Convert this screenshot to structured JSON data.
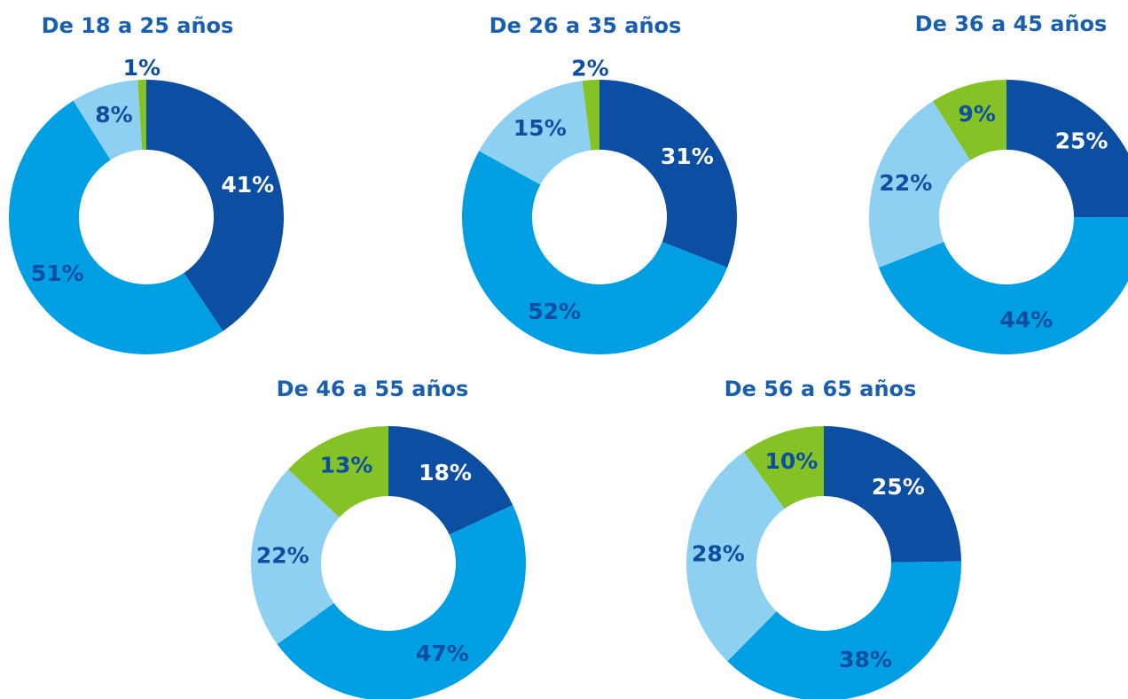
{
  "chart_data": [
    {
      "type": "donut",
      "title": "De 18 a 25 años",
      "values": [
        41,
        51,
        8,
        1
      ],
      "value_labels": [
        "41%",
        "51%",
        "8%",
        "1%"
      ],
      "colors": [
        "#0b4ea2",
        "#009fe3",
        "#8dd0f2",
        "#84c225"
      ]
    },
    {
      "type": "donut",
      "title": "De 26 a 35 años",
      "values": [
        31,
        52,
        15,
        2
      ],
      "value_labels": [
        "31%",
        "52%",
        "15%",
        "2%"
      ],
      "colors": [
        "#0b4ea2",
        "#009fe3",
        "#8dd0f2",
        "#84c225"
      ]
    },
    {
      "type": "donut",
      "title": "De 36 a 45 años",
      "values": [
        25,
        44,
        22,
        9
      ],
      "value_labels": [
        "25%",
        "44%",
        "22%",
        "9%"
      ],
      "colors": [
        "#0b4ea2",
        "#009fe3",
        "#8dd0f2",
        "#84c225"
      ]
    },
    {
      "type": "donut",
      "title": "De 46 a 55 años",
      "values": [
        18,
        47,
        22,
        13
      ],
      "value_labels": [
        "18%",
        "47%",
        "22%",
        "13%"
      ],
      "colors": [
        "#0b4ea2",
        "#009fe3",
        "#8dd0f2",
        "#84c225"
      ]
    },
    {
      "type": "donut",
      "title": "De 56 a 65 años",
      "values": [
        25,
        38,
        28,
        10
      ],
      "value_labels": [
        "25%",
        "38%",
        "28%",
        "10%"
      ],
      "colors": [
        "#0b4ea2",
        "#009fe3",
        "#8dd0f2",
        "#84c225"
      ]
    }
  ]
}
